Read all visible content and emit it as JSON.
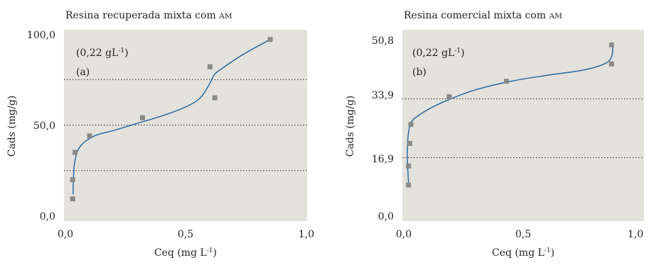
{
  "chart_data": [
    {
      "type": "scatter",
      "title": "Resina recuperada mixta com AM",
      "xlabel": "Ceq (mg L-1)",
      "ylabel": "Cads (mg/g)",
      "xlim": [
        0,
        1.0
      ],
      "ylim": [
        0,
        100
      ],
      "x_ticks": [
        "0,0",
        "0,5",
        "1,0"
      ],
      "y_ticks": [
        "0,0",
        "50,0",
        "100,0"
      ],
      "grid": "dotted horizontal lines at 25, 50, 75",
      "annotations": [
        "(0,22 gL-1)",
        "(a)"
      ],
      "series": [
        {
          "points": [
            [
              0.03,
              9.5
            ],
            [
              0.03,
              20
            ],
            [
              0.04,
              35
            ],
            [
              0.1,
              44
            ],
            [
              0.32,
              54
            ],
            [
              0.6,
              82
            ],
            [
              0.62,
              65
            ],
            [
              0.85,
              97
            ]
          ]
        }
      ],
      "fit_curve": [
        [
          0.032,
          12
        ],
        [
          0.037,
          28
        ],
        [
          0.06,
          38
        ],
        [
          0.12,
          44
        ],
        [
          0.2,
          47
        ],
        [
          0.3,
          51
        ],
        [
          0.4,
          55
        ],
        [
          0.5,
          60
        ],
        [
          0.56,
          65
        ],
        [
          0.6,
          73
        ],
        [
          0.62,
          78
        ],
        [
          0.66,
          82
        ],
        [
          0.74,
          89
        ],
        [
          0.85,
          97
        ]
      ],
      "colors": {
        "plot_bg": "#e4e2dd",
        "marker": "#8a8a8a",
        "curve": "#2b6aa3"
      }
    },
    {
      "type": "scatter",
      "title": "Resina comercial mixta com AM",
      "xlabel": "Ceq (mg L-1)",
      "ylabel": "Cads (mg/g)",
      "xlim": [
        0,
        1.0
      ],
      "ylim": [
        0,
        50.8
      ],
      "x_ticks": [
        "0,0",
        "0,5",
        "1,0"
      ],
      "y_ticks": [
        "0,0",
        "16,9",
        "33,9",
        "50,8"
      ],
      "grid": "dotted horizontal lines at 16.9, 33.9",
      "annotations": [
        "(0,22 gL-1)",
        "(b)"
      ],
      "series": [
        {
          "points": [
            [
              0.02,
              9
            ],
            [
              0.02,
              14.5
            ],
            [
              0.025,
              21
            ],
            [
              0.03,
              26.5
            ],
            [
              0.19,
              34.5
            ],
            [
              0.43,
              39
            ],
            [
              0.87,
              49.5
            ],
            [
              0.87,
              44
            ]
          ]
        }
      ],
      "fit_curve": [
        [
          0.02,
          9.5
        ],
        [
          0.015,
          17
        ],
        [
          0.018,
          23
        ],
        [
          0.03,
          27
        ],
        [
          0.06,
          29
        ],
        [
          0.12,
          31.5
        ],
        [
          0.2,
          34
        ],
        [
          0.3,
          36.5
        ],
        [
          0.45,
          39
        ],
        [
          0.6,
          40.7
        ],
        [
          0.75,
          42.2
        ],
        [
          0.84,
          44
        ],
        [
          0.87,
          46
        ],
        [
          0.875,
          49
        ]
      ],
      "colors": {
        "plot_bg": "#e4e2dd",
        "marker": "#8a8a8a",
        "curve": "#2b6aa3"
      }
    }
  ],
  "text": {
    "left": {
      "title_main": "Resina recuperada mixta com ",
      "title_sc": "AM",
      "ylabel": "Cads (mg/g)",
      "xlabel_main": "Ceq (mg L",
      "xlabel_sup": "-1",
      "xlabel_end": ")",
      "conc_main": "(0,22 gL",
      "conc_sup": "-1",
      "conc_end": ")",
      "panel": "(a)",
      "y_ticks": [
        "0,0",
        "50,0",
        "100,0"
      ],
      "x_ticks": [
        "0,0",
        "0,5",
        "1,0"
      ]
    },
    "right": {
      "title_main": "Resina comercial mixta com ",
      "title_sc": "AM",
      "ylabel": "Cads (mg/g)",
      "xlabel_main": "Ceq (mg L",
      "xlabel_sup": "-1",
      "xlabel_end": ")",
      "conc_main": "(0,22 gL",
      "conc_sup": "-1",
      "conc_end": ")",
      "panel": "(b)",
      "y_ticks": [
        "0,0",
        "16,9",
        "33,9",
        "50,8"
      ],
      "x_ticks": [
        "0,0",
        "0,5",
        "1,0"
      ]
    }
  }
}
